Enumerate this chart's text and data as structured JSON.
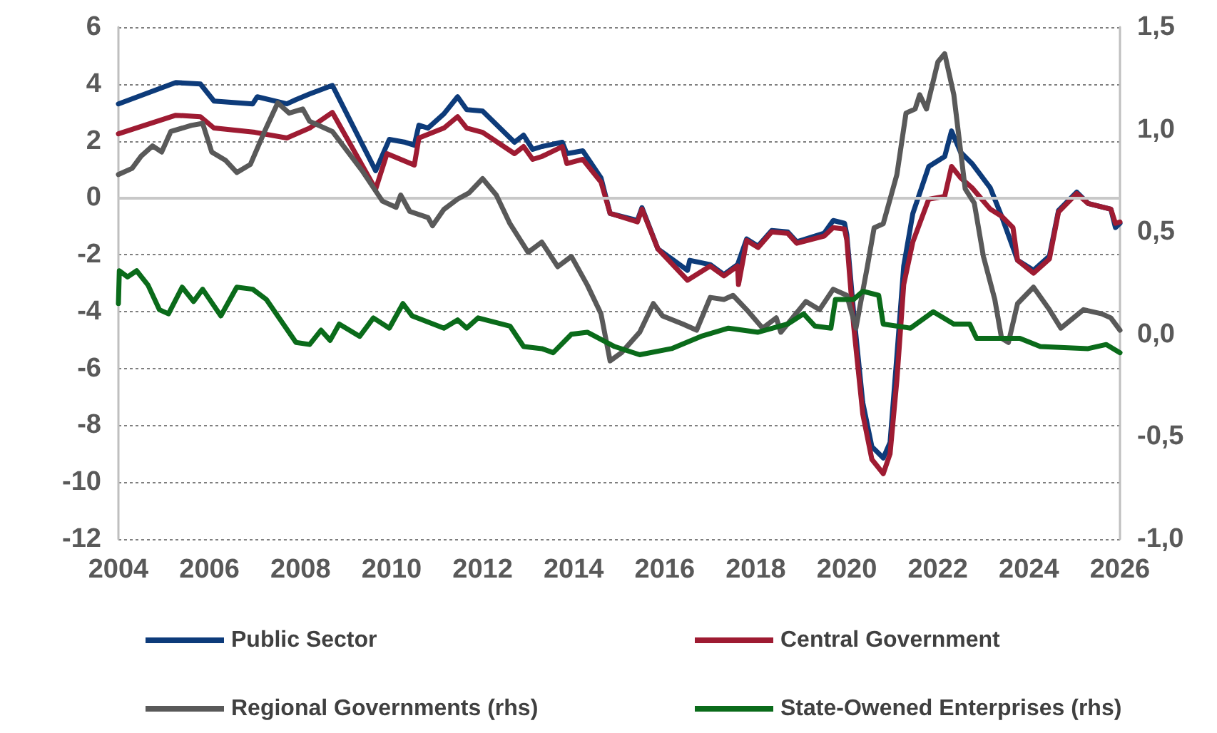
{
  "chart_data": {
    "type": "line",
    "xlim": [
      2004,
      2026
    ],
    "xticks": [
      2004,
      2006,
      2008,
      2010,
      2012,
      2014,
      2016,
      2018,
      2020,
      2022,
      2024,
      2026
    ],
    "ylim": [
      -12,
      6
    ],
    "yticks": [
      -12,
      -10,
      -8,
      -6,
      -4,
      -2,
      0,
      2,
      4,
      6
    ],
    "y2lim": [
      -1,
      1.5
    ],
    "y2ticks": [
      {
        "value": -1,
        "label": "-1,0"
      },
      {
        "value": -0.5,
        "label": "-0,5"
      },
      {
        "value": 0,
        "label": "0,0"
      },
      {
        "value": 0.5,
        "label": "0,5"
      },
      {
        "value": 1,
        "label": "1,0"
      },
      {
        "value": 1.5,
        "label": "1,5"
      }
    ],
    "grid": "y",
    "legend": "bottom",
    "line_style": "solid",
    "marker": "none",
    "ref_lines": [
      {
        "axis": "y",
        "value": 0,
        "color": "#c8c8c8",
        "line_style": "solid"
      }
    ],
    "series": [
      {
        "name": "Public Sector",
        "color": "#0d3b7a",
        "x": [
          2004,
          2005.26,
          2005.8,
          2006.1,
          2006.95,
          2007.05,
          2007.7,
          2007.9,
          2008.2,
          2008.7,
          2009.65,
          2009.95,
          2010.3,
          2010.5,
          2010.6,
          2010.8,
          2011.15,
          2011.45,
          2011.65,
          2012,
          2012.7,
          2012.9,
          2013.1,
          2013.3,
          2013.75,
          2013.85,
          2014.2,
          2014.6,
          2014.8,
          2015.4,
          2015.5,
          2015.85,
          2016.5,
          2016.55,
          2017,
          2017.3,
          2017.6,
          2017.8,
          2018.05,
          2018.35,
          2018.7,
          2018.9,
          2019.5,
          2019.7,
          2019.95,
          2020,
          2020.15,
          2020.35,
          2020.55,
          2020.8,
          2020.95,
          2021.1,
          2021.25,
          2021.45,
          2021.8,
          2022.15,
          2022.3,
          2022.5,
          2022.75,
          2023.15,
          2023.4,
          2023.75,
          2024.1,
          2024.45,
          2024.65,
          2025.05,
          2025.3,
          2025.8,
          2025.9,
          2026
        ],
        "values": [
          3.3,
          4.05,
          4.0,
          3.4,
          3.3,
          3.55,
          3.3,
          3.45,
          3.65,
          3.95,
          0.95,
          2.05,
          1.95,
          1.85,
          2.55,
          2.45,
          2.95,
          3.55,
          3.1,
          3.05,
          1.95,
          2.2,
          1.7,
          1.8,
          1.95,
          1.55,
          1.65,
          0.7,
          -0.55,
          -0.8,
          -0.35,
          -1.8,
          -2.55,
          -2.2,
          -2.35,
          -2.7,
          -2.35,
          -1.45,
          -1.7,
          -1.15,
          -1.2,
          -1.55,
          -1.25,
          -0.8,
          -0.9,
          -1.3,
          -4.05,
          -7.2,
          -8.75,
          -9.15,
          -8.6,
          -5.55,
          -2.4,
          -0.55,
          1.1,
          1.45,
          2.35,
          1.6,
          1.2,
          0.35,
          -0.65,
          -2.2,
          -2.55,
          -2.05,
          -0.45,
          0.2,
          -0.2,
          -0.4,
          -1.05,
          -0.9
        ]
      },
      {
        "name": "Central Government",
        "color": "#9e1b32",
        "x": [
          2004,
          2005.26,
          2005.8,
          2006.1,
          2007,
          2007.7,
          2008.2,
          2008.7,
          2009.65,
          2009.9,
          2010.5,
          2010.6,
          2011.15,
          2011.45,
          2011.65,
          2012,
          2012.7,
          2012.9,
          2013.1,
          2013.3,
          2013.75,
          2013.85,
          2014.2,
          2014.6,
          2014.8,
          2015.4,
          2015.5,
          2015.85,
          2016.5,
          2017,
          2017.3,
          2017.6,
          2017.62,
          2017.8,
          2018.05,
          2018.35,
          2018.7,
          2018.9,
          2019.5,
          2019.7,
          2019.95,
          2020,
          2020.15,
          2020.35,
          2020.55,
          2020.8,
          2020.95,
          2021.1,
          2021.25,
          2021.45,
          2021.8,
          2022.15,
          2022.3,
          2022.5,
          2022.75,
          2023.15,
          2023.4,
          2023.65,
          2023.75,
          2024.1,
          2024.45,
          2024.65,
          2025.05,
          2025.3,
          2025.8,
          2025.9,
          2026
        ],
        "values": [
          2.25,
          2.9,
          2.85,
          2.45,
          2.3,
          2.1,
          2.45,
          3.0,
          0.3,
          1.55,
          1.15,
          2.1,
          2.45,
          2.85,
          2.45,
          2.3,
          1.55,
          1.8,
          1.35,
          1.45,
          1.8,
          1.2,
          1.35,
          0.55,
          -0.55,
          -0.85,
          -0.4,
          -1.8,
          -2.9,
          -2.4,
          -2.75,
          -2.4,
          -3.05,
          -1.5,
          -1.75,
          -1.2,
          -1.25,
          -1.6,
          -1.35,
          -1.05,
          -1.1,
          -1.5,
          -4.5,
          -7.6,
          -9.2,
          -9.7,
          -9.0,
          -6.4,
          -3.05,
          -1.55,
          -0.05,
          0.05,
          1.1,
          0.7,
          0.35,
          -0.4,
          -0.65,
          -1.05,
          -2.2,
          -2.65,
          -2.15,
          -0.5,
          0.15,
          -0.2,
          -0.4,
          -0.9,
          -0.85
        ]
      },
      {
        "name": "Regional Governments (rhs)",
        "color": "#595959",
        "axis": "y2",
        "x": [
          2004,
          2004.3,
          2004.5,
          2004.75,
          2004.95,
          2005.15,
          2005.6,
          2005.85,
          2006.05,
          2006.35,
          2006.6,
          2006.9,
          2007.25,
          2007.5,
          2007.75,
          2008.05,
          2008.2,
          2008.7,
          2009.35,
          2009.8,
          2010.1,
          2010.2,
          2010.4,
          2010.8,
          2010.9,
          2011.15,
          2011.45,
          2011.7,
          2012,
          2012.3,
          2012.6,
          2013,
          2013.3,
          2013.65,
          2013.95,
          2014.3,
          2014.6,
          2014.8,
          2015.05,
          2015.45,
          2015.75,
          2015.95,
          2016.4,
          2016.7,
          2017,
          2017.3,
          2017.5,
          2017.8,
          2018.15,
          2018.45,
          2018.55,
          2019.1,
          2019.4,
          2019.7,
          2020,
          2020.2,
          2020.45,
          2020.6,
          2020.8,
          2021.1,
          2021.3,
          2021.5,
          2021.6,
          2021.75,
          2022,
          2022.15,
          2022.35,
          2022.6,
          2022.8,
          2023,
          2023.25,
          2023.4,
          2023.55,
          2023.75,
          2024.1,
          2024.45,
          2024.7,
          2025.2,
          2025.6,
          2025.8,
          2026
        ],
        "values": [
          0.78,
          0.81,
          0.87,
          0.92,
          0.89,
          0.99,
          1.02,
          1.03,
          0.89,
          0.85,
          0.79,
          0.83,
          1.01,
          1.13,
          1.08,
          1.1,
          1.04,
          0.99,
          0.8,
          0.65,
          0.62,
          0.68,
          0.6,
          0.57,
          0.53,
          0.61,
          0.66,
          0.69,
          0.76,
          0.68,
          0.54,
          0.4,
          0.45,
          0.33,
          0.38,
          0.24,
          0.1,
          -0.13,
          -0.09,
          0.01,
          0.15,
          0.09,
          0.05,
          0.02,
          0.18,
          0.17,
          0.19,
          0.12,
          0.03,
          0.08,
          0.01,
          0.16,
          0.12,
          0.22,
          0.19,
          0.03,
          0.33,
          0.52,
          0.54,
          0.78,
          1.08,
          1.1,
          1.17,
          1.1,
          1.33,
          1.37,
          1.17,
          0.71,
          0.64,
          0.38,
          0.17,
          -0.02,
          -0.04,
          0.15,
          0.23,
          0.12,
          0.03,
          0.12,
          0.1,
          0.08,
          0.02
        ]
      },
      {
        "name": "State-Owened Enterprises (rhs)",
        "color": "#0a6b1a",
        "axis": "y2",
        "x": [
          2004,
          2004.02,
          2004.2,
          2004.4,
          2004.65,
          2004.9,
          2005.1,
          2005.4,
          2005.65,
          2005.85,
          2006.25,
          2006.6,
          2006.95,
          2007.25,
          2007.9,
          2008.2,
          2008.45,
          2008.65,
          2008.85,
          2009.3,
          2009.6,
          2009.95,
          2010.25,
          2010.45,
          2011.15,
          2011.45,
          2011.65,
          2011.9,
          2012.6,
          2012.9,
          2013.3,
          2013.55,
          2013.95,
          2014.3,
          2014.9,
          2015.45,
          2016.15,
          2016.8,
          2017.4,
          2018.05,
          2018.7,
          2019.05,
          2019.3,
          2019.65,
          2019.75,
          2020.15,
          2020.35,
          2020.7,
          2020.8,
          2021.4,
          2021.9,
          2022.35,
          2022.7,
          2022.85,
          2023.8,
          2024.25,
          2025.3,
          2025.7,
          2026
        ],
        "values": [
          0.15,
          0.31,
          0.28,
          0.31,
          0.24,
          0.12,
          0.1,
          0.23,
          0.16,
          0.22,
          0.09,
          0.23,
          0.22,
          0.17,
          -0.04,
          -0.05,
          0.02,
          -0.03,
          0.05,
          -0.01,
          0.08,
          0.03,
          0.15,
          0.09,
          0.03,
          0.07,
          0.03,
          0.08,
          0.04,
          -0.06,
          -0.07,
          -0.09,
          0.0,
          0.01,
          -0.06,
          -0.1,
          -0.07,
          -0.01,
          0.03,
          0.01,
          0.05,
          0.1,
          0.04,
          0.03,
          0.17,
          0.17,
          0.21,
          0.19,
          0.05,
          0.03,
          0.11,
          0.05,
          0.05,
          -0.02,
          -0.02,
          -0.06,
          -0.07,
          -0.05,
          -0.09
        ]
      }
    ]
  }
}
